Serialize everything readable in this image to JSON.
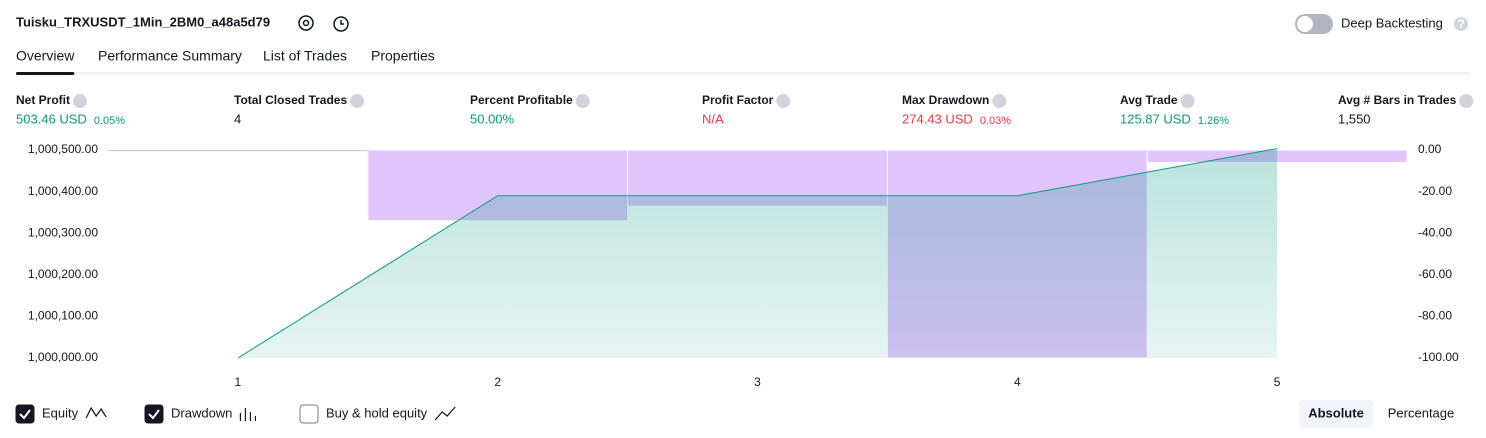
{
  "header": {
    "title": "Tuisku_TRXUSDT_1Min_2BM0_a48a5d79",
    "deep_backtesting": "Deep Backtesting",
    "deep_backtesting_on": false
  },
  "tabs": [
    "Overview",
    "Performance Summary",
    "List of Trades",
    "Properties"
  ],
  "active_tab": 0,
  "metrics": [
    {
      "label": "Net Profit",
      "value": "503.46 USD",
      "change": "0.05%",
      "tone": "positive"
    },
    {
      "label": "Total Closed Trades",
      "value": "4",
      "tone": "neutral"
    },
    {
      "label": "Percent Profitable",
      "value": "50.00%",
      "tone": "positive"
    },
    {
      "label": "Profit Factor",
      "value": "N/A",
      "tone": "negative"
    },
    {
      "label": "Max Drawdown",
      "value": "274.43 USD",
      "change": "0.03%",
      "tone": "negative"
    },
    {
      "label": "Avg Trade",
      "value": "125.87 USD",
      "change": "1.26%",
      "tone": "positive"
    },
    {
      "label": "Avg # Bars in Trades",
      "value": "1,550",
      "tone": "neutral"
    }
  ],
  "chart_data": {
    "type": "line",
    "x": [
      1,
      2,
      3,
      4,
      5
    ],
    "xlim": [
      0.5,
      5.5
    ],
    "xticks": [
      1,
      2,
      3,
      4,
      5
    ],
    "series": [
      {
        "name": "Equity",
        "color": "#089981",
        "values": [
          1000000,
          1000390,
          1000390,
          1000390,
          1000503.46
        ]
      },
      {
        "name": "Drawdown",
        "color": "#e1c4fb",
        "axis": "y2",
        "values": [
          null,
          -34,
          -27,
          -100,
          -6
        ]
      }
    ],
    "ylim": [
      1000000,
      1000500
    ],
    "yticks": [
      {
        "value": 1000000,
        "label": "1,000,000.00"
      },
      {
        "value": 1000100,
        "label": "1,000,100.00"
      },
      {
        "value": 1000200,
        "label": "1,000,200.00"
      },
      {
        "value": 1000300,
        "label": "1,000,300.00"
      },
      {
        "value": 1000400,
        "label": "1,000,400.00"
      },
      {
        "value": 1000500,
        "label": "1,000,500.00"
      }
    ],
    "y2lim": [
      -100,
      0
    ],
    "y2ticks": [
      {
        "value": 0,
        "label": "0.00"
      },
      {
        "value": -20,
        "label": "-20.00"
      },
      {
        "value": -40,
        "label": "-40.00"
      },
      {
        "value": -60,
        "label": "-60.00"
      },
      {
        "value": -80,
        "label": "-80.00"
      },
      {
        "value": -100,
        "label": "-100.00"
      }
    ]
  },
  "legend_toggles": [
    {
      "label": "Equity",
      "checked": true
    },
    {
      "label": "Drawdown",
      "checked": true
    },
    {
      "label": "Buy & hold equity",
      "checked": false
    }
  ],
  "modes": [
    "Absolute",
    "Percentage"
  ],
  "active_mode": 0
}
